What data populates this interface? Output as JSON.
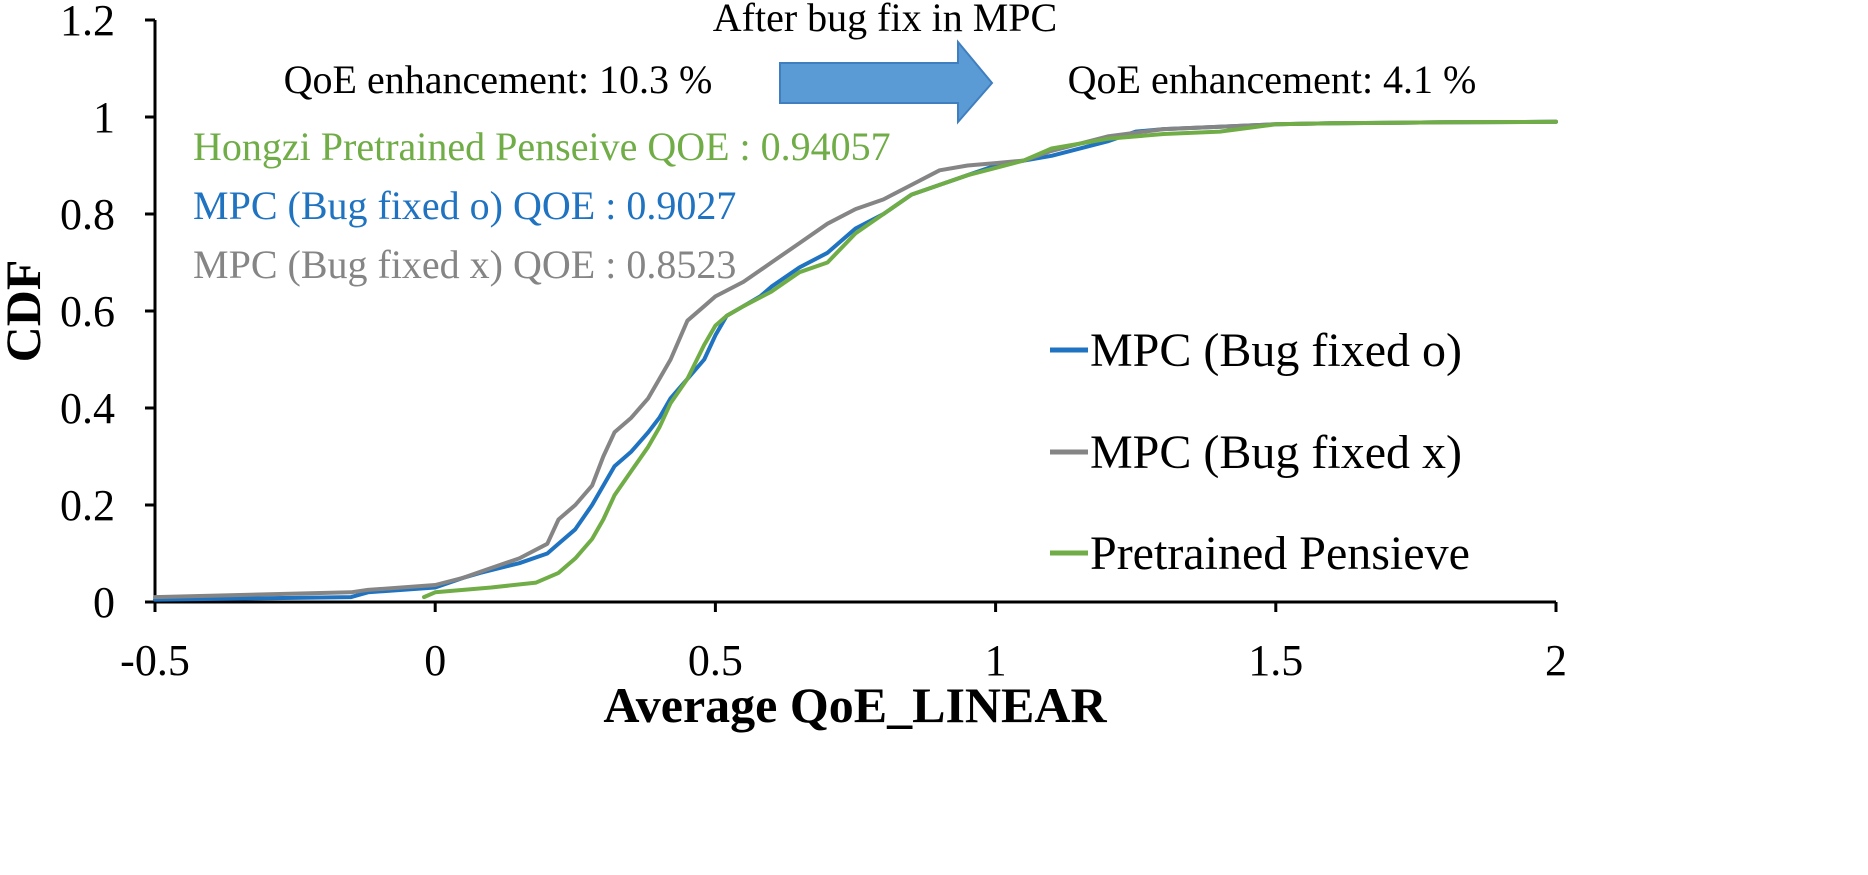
{
  "chart_data": {
    "type": "line",
    "xlabel": "Average QoE_LINEAR",
    "ylabel": "CDF",
    "xlim": [
      -0.5,
      2
    ],
    "ylim": [
      0,
      1.2
    ],
    "x_ticks": [
      "-0.5",
      "0",
      "0.5",
      "1",
      "1.5",
      "2"
    ],
    "x_tick_values": [
      -0.5,
      0,
      0.5,
      1,
      1.5,
      2
    ],
    "y_ticks": [
      "0",
      "0.2",
      "0.4",
      "0.6",
      "0.8",
      "1",
      "1.2"
    ],
    "y_tick_values": [
      0,
      0.2,
      0.4,
      0.6,
      0.8,
      1,
      1.2
    ],
    "grid": false,
    "legend_position": "right",
    "annotations": {
      "arrow_label": "After bug fix in MPC",
      "left_enhancement": "QoE enhancement: 10.3 %",
      "right_enhancement": "QoE enhancement: 4.1 %",
      "stats": [
        {
          "text": "Hongzi Pretrained Penseive QOE : 0.94057",
          "color": "#70ad47"
        },
        {
          "text": "MPC (Bug fixed o) QOE : 0.9027",
          "color": "#1f73c0"
        },
        {
          "text": "MPC (Bug fixed x) QOE : 0.8523",
          "color": "#858585"
        }
      ]
    },
    "series": [
      {
        "name": "MPC (Bug fixed o)",
        "color": "#1f73c0",
        "x": [
          -0.5,
          -0.15,
          -0.12,
          0.0,
          0.05,
          0.08,
          0.15,
          0.2,
          0.22,
          0.25,
          0.28,
          0.3,
          0.32,
          0.35,
          0.38,
          0.4,
          0.42,
          0.45,
          0.48,
          0.5,
          0.52,
          0.55,
          0.58,
          0.6,
          0.65,
          0.7,
          0.75,
          0.8,
          0.85,
          0.9,
          0.95,
          1.0,
          1.05,
          1.1,
          1.2,
          1.25,
          1.3,
          1.4,
          1.5,
          1.6,
          1.8,
          2.0
        ],
        "values": [
          0.005,
          0.01,
          0.02,
          0.03,
          0.05,
          0.06,
          0.08,
          0.1,
          0.12,
          0.15,
          0.2,
          0.24,
          0.28,
          0.31,
          0.35,
          0.38,
          0.42,
          0.46,
          0.5,
          0.55,
          0.59,
          0.61,
          0.63,
          0.65,
          0.69,
          0.72,
          0.77,
          0.8,
          0.84,
          0.86,
          0.88,
          0.9,
          0.91,
          0.92,
          0.95,
          0.97,
          0.975,
          0.98,
          0.985,
          0.987,
          0.989,
          0.99
        ]
      },
      {
        "name": "MPC (Bug fixed x)",
        "color": "#858585",
        "x": [
          -0.5,
          -0.15,
          -0.12,
          0.0,
          0.05,
          0.1,
          0.15,
          0.2,
          0.22,
          0.25,
          0.28,
          0.3,
          0.32,
          0.35,
          0.38,
          0.4,
          0.42,
          0.45,
          0.48,
          0.5,
          0.55,
          0.6,
          0.65,
          0.7,
          0.75,
          0.8,
          0.85,
          0.9,
          0.95,
          1.0,
          1.05,
          1.1,
          1.2,
          1.3,
          1.4,
          1.5,
          1.6,
          1.8,
          2.0
        ],
        "values": [
          0.01,
          0.02,
          0.025,
          0.035,
          0.05,
          0.07,
          0.09,
          0.12,
          0.17,
          0.2,
          0.24,
          0.3,
          0.35,
          0.38,
          0.42,
          0.46,
          0.5,
          0.58,
          0.61,
          0.63,
          0.66,
          0.7,
          0.74,
          0.78,
          0.81,
          0.83,
          0.86,
          0.89,
          0.9,
          0.905,
          0.91,
          0.93,
          0.96,
          0.975,
          0.98,
          0.985,
          0.987,
          0.989,
          0.99
        ]
      },
      {
        "name": "Pretrained Pensieve",
        "color": "#70ad47",
        "x": [
          -0.02,
          0.0,
          0.1,
          0.18,
          0.22,
          0.25,
          0.28,
          0.3,
          0.32,
          0.35,
          0.38,
          0.4,
          0.42,
          0.45,
          0.48,
          0.5,
          0.52,
          0.55,
          0.6,
          0.65,
          0.7,
          0.75,
          0.8,
          0.85,
          0.9,
          0.95,
          1.0,
          1.05,
          1.1,
          1.2,
          1.3,
          1.4,
          1.5,
          1.6,
          1.8,
          2.0
        ],
        "values": [
          0.01,
          0.02,
          0.03,
          0.04,
          0.06,
          0.09,
          0.13,
          0.17,
          0.22,
          0.27,
          0.32,
          0.36,
          0.41,
          0.46,
          0.53,
          0.57,
          0.59,
          0.61,
          0.64,
          0.68,
          0.7,
          0.76,
          0.8,
          0.84,
          0.86,
          0.88,
          0.895,
          0.91,
          0.935,
          0.955,
          0.965,
          0.97,
          0.985,
          0.987,
          0.989,
          0.99
        ]
      }
    ]
  }
}
